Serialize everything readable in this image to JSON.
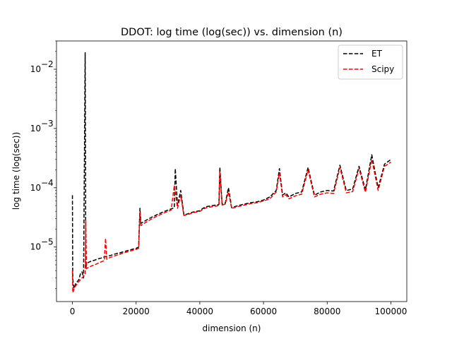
{
  "chart_data": {
    "type": "line",
    "title": "DDOT: log time (log(sec)) vs. dimension (n)",
    "xlabel": "dimension (n)",
    "ylabel": "log time (log(sec))",
    "xlim": [
      -5000,
      105000
    ],
    "ylim": [
      1.2e-06,
      0.03
    ],
    "yscale": "log",
    "xticks": [
      0,
      20000,
      40000,
      60000,
      80000,
      100000
    ],
    "xtick_labels": [
      "0",
      "20000",
      "40000",
      "60000",
      "80000",
      "100000"
    ],
    "yticks": [
      1e-05,
      0.0001,
      0.001,
      0.01
    ],
    "ytick_labels": [
      "10",
      "10",
      "10",
      "10"
    ],
    "ytick_exponents": [
      "−5",
      "−4",
      "−3",
      "−2"
    ],
    "legend_position": "top-right",
    "grid": false,
    "series": [
      {
        "name": "ET",
        "color": "#000000",
        "linestyle": "dashed",
        "x": [
          0,
          100,
          300,
          500,
          1000,
          1500,
          2000,
          2500,
          3000,
          3500,
          4000,
          4200,
          4400,
          4600,
          5000,
          6000,
          7000,
          8000,
          9000,
          10000,
          11000,
          12000,
          13000,
          14000,
          15000,
          16000,
          17000,
          18000,
          19000,
          20000,
          20800,
          21000,
          21200,
          21500,
          22000,
          23000,
          24000,
          25000,
          26000,
          27000,
          28000,
          29000,
          30000,
          31000,
          32000,
          32300,
          33000,
          34000,
          35000,
          36000,
          38000,
          40000,
          41000,
          42000,
          44000,
          46000,
          46300,
          47000,
          48000,
          49000,
          50000,
          52000,
          54000,
          56000,
          58000,
          60000,
          62000,
          64000,
          65000,
          66000,
          67000,
          68000,
          70000,
          72000,
          74000,
          76000,
          78000,
          80000,
          82000,
          84000,
          86000,
          88000,
          90000,
          92000,
          94000,
          96000,
          98000,
          100000
        ],
        "y": [
          7.5e-05,
          3e-06,
          2.3e-06,
          2e-06,
          2.4e-06,
          2.6e-06,
          2.8e-06,
          3.5e-06,
          3.8e-06,
          3e-06,
          0.019,
          4.5e-06,
          5e-06,
          5.2e-06,
          5.5e-06,
          5.8e-06,
          6e-06,
          6.3e-06,
          6.5e-06,
          6.8e-06,
          7e-06,
          7.2e-06,
          7.5e-06,
          7.8e-06,
          8e-06,
          8.3e-06,
          8.6e-06,
          8.9e-06,
          9.2e-06,
          9.5e-06,
          1e-05,
          2.2e-05,
          4.5e-05,
          2.5e-05,
          2.6e-05,
          2.8e-05,
          3e-05,
          3.2e-05,
          3.4e-05,
          3.6e-05,
          3.8e-05,
          4e-05,
          4.2e-05,
          4.4e-05,
          4.6e-05,
          0.00021,
          5e-05,
          9e-05,
          3.5e-05,
          3.6e-05,
          3.9e-05,
          4.1e-05,
          4.5e-05,
          4.8e-05,
          5e-05,
          5.2e-05,
          0.00022,
          5.3e-05,
          5.5e-05,
          0.0001,
          4.6e-05,
          5e-05,
          5.3e-05,
          5.6e-05,
          5.8e-05,
          6.2e-05,
          7e-05,
          9e-05,
          0.00021,
          7.5e-05,
          8.2e-05,
          7e-05,
          8e-05,
          8.5e-05,
          0.00022,
          7.5e-05,
          8.5e-05,
          9e-05,
          8.8e-05,
          0.00024,
          9e-05,
          9.5e-05,
          0.00023,
          9.2e-05,
          0.00036,
          0.0001,
          0.00025,
          0.0003
        ]
      },
      {
        "name": "Scipy",
        "color": "#ff0000",
        "linestyle": "dashed",
        "x": [
          0,
          100,
          300,
          500,
          1000,
          1500,
          2000,
          2500,
          3000,
          3500,
          4000,
          4200,
          4400,
          4600,
          5000,
          6000,
          7000,
          8000,
          9000,
          10000,
          10400,
          10800,
          11000,
          12000,
          13000,
          14000,
          15000,
          16000,
          17000,
          18000,
          19000,
          20000,
          20800,
          21000,
          21200,
          21500,
          22000,
          23000,
          24000,
          25000,
          26000,
          27000,
          28000,
          29000,
          30000,
          31000,
          32000,
          33000,
          34000,
          35000,
          36000,
          38000,
          40000,
          41000,
          42000,
          44000,
          46000,
          46300,
          47000,
          48000,
          49000,
          50000,
          52000,
          54000,
          56000,
          58000,
          60000,
          62000,
          64000,
          65000,
          66000,
          67000,
          68000,
          70000,
          72000,
          74000,
          76000,
          78000,
          80000,
          82000,
          84000,
          86000,
          88000,
          90000,
          92000,
          94000,
          96000,
          98000,
          100000
        ],
        "y": [
          4e-06,
          1.7e-06,
          1.8e-06,
          2e-06,
          2.2e-06,
          2.4e-06,
          2.6e-06,
          2.8e-06,
          3e-06,
          3.2e-06,
          3.4e-06,
          2.8e-05,
          4.3e-06,
          4.4e-06,
          4.5e-06,
          4.8e-06,
          5e-06,
          5.3e-06,
          5.6e-06,
          5.9e-06,
          1.4e-05,
          6.2e-06,
          6.4e-06,
          6.7e-06,
          7e-06,
          7.3e-06,
          7.6e-06,
          7.9e-06,
          8.2e-06,
          8.5e-06,
          8.8e-06,
          9.1e-06,
          9.5e-06,
          2e-05,
          3.8e-05,
          2.3e-05,
          2.4e-05,
          2.6e-05,
          2.8e-05,
          3e-05,
          3.2e-05,
          3.4e-05,
          3.6e-05,
          3.8e-05,
          4e-05,
          4.2e-05,
          0.00011,
          4.5e-05,
          7.5e-05,
          3.4e-05,
          3.5e-05,
          3.8e-05,
          4e-05,
          4.3e-05,
          4.6e-05,
          4.8e-05,
          5e-05,
          0.00019,
          5.1e-05,
          5.3e-05,
          8.5e-05,
          4.5e-05,
          4.8e-05,
          5.1e-05,
          5.4e-05,
          5.6e-05,
          6e-05,
          6.5e-05,
          8.5e-05,
          0.00018,
          7e-05,
          7.6e-05,
          6.5e-05,
          7.3e-05,
          7.8e-05,
          0.0002,
          7e-05,
          7.8e-05,
          8.2e-05,
          8e-05,
          0.00022,
          8.2e-05,
          8.6e-05,
          0.00021,
          8.4e-05,
          0.0003,
          9e-05,
          0.00023,
          0.00027
        ]
      }
    ]
  }
}
